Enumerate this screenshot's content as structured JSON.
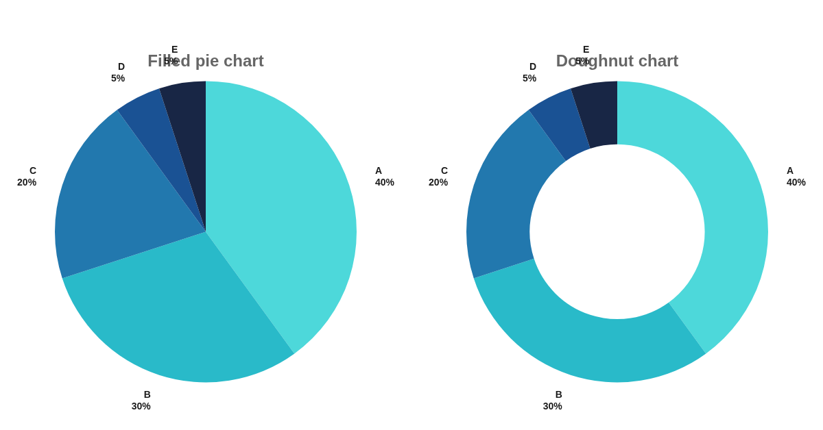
{
  "chart_data": [
    {
      "type": "pie",
      "title": "Filled pie chart",
      "categories": [
        "A",
        "B",
        "C",
        "D",
        "E"
      ],
      "values": [
        40,
        30,
        20,
        5,
        5
      ],
      "value_labels": [
        "40%",
        "30%",
        "20%",
        "5%",
        "5%"
      ],
      "data_labels": true,
      "colors": [
        "#4DD8DA",
        "#29BAC9",
        "#2278AE",
        "#1A5294",
        "#182645"
      ]
    },
    {
      "type": "doughnut",
      "title": "Doughnut chart",
      "categories": [
        "A",
        "B",
        "C",
        "D",
        "E"
      ],
      "values": [
        40,
        30,
        20,
        5,
        5
      ],
      "value_labels": [
        "40%",
        "30%",
        "20%",
        "5%",
        "5%"
      ],
      "data_labels": true,
      "colors": [
        "#4DD8DA",
        "#29BAC9",
        "#2278AE",
        "#1A5294",
        "#182645"
      ]
    }
  ]
}
